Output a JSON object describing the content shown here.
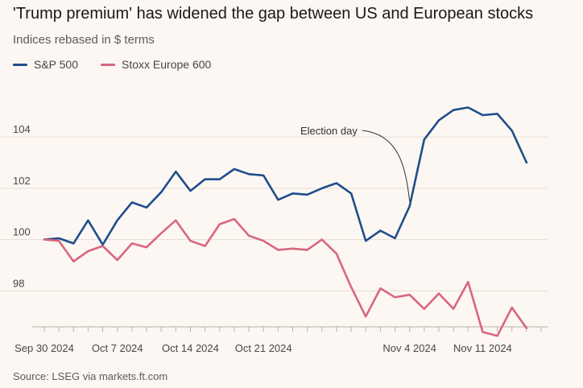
{
  "header": {
    "title": "'Trump premium' has widened the gap between US and European stocks",
    "subtitle": "Indices rebased in $ terms"
  },
  "footer": {
    "source": "Source: LSEG via markets.ft.com"
  },
  "chart_data": {
    "type": "line",
    "title": "'Trump premium' has widened the gap between US and European stocks",
    "subtitle": "Indices rebased in $ terms",
    "xlabel": "",
    "ylabel": "",
    "x": [
      "2024-09-30",
      "2024-10-01",
      "2024-10-02",
      "2024-10-03",
      "2024-10-04",
      "2024-10-07",
      "2024-10-08",
      "2024-10-09",
      "2024-10-10",
      "2024-10-11",
      "2024-10-14",
      "2024-10-15",
      "2024-10-16",
      "2024-10-17",
      "2024-10-18",
      "2024-10-21",
      "2024-10-22",
      "2024-10-23",
      "2024-10-24",
      "2024-10-25",
      "2024-10-28",
      "2024-10-29",
      "2024-10-30",
      "2024-10-31",
      "2024-11-01",
      "2024-11-04",
      "2024-11-05",
      "2024-11-06",
      "2024-11-07",
      "2024-11-08",
      "2024-11-11",
      "2024-11-12",
      "2024-11-13",
      "2024-11-14",
      "2024-11-15"
    ],
    "x_ticks": [
      {
        "date": "2024-09-30",
        "label": "Sep 30 2024"
      },
      {
        "date": "2024-10-07",
        "label": "Oct 7 2024"
      },
      {
        "date": "2024-10-14",
        "label": "Oct 14 2024"
      },
      {
        "date": "2024-10-21",
        "label": "Oct 21 2024"
      },
      {
        "date": "2024-11-04",
        "label": "Nov 4 2024"
      },
      {
        "date": "2024-11-11",
        "label": "Nov 11 2024"
      }
    ],
    "ylim": [
      96.6,
      106.2
    ],
    "y_ticks": [
      98,
      100,
      102,
      104
    ],
    "grid": "horizontal",
    "legend": "top-left",
    "series": [
      {
        "name": "S&P 500",
        "color": "#1f4e8c",
        "values": [
          100.0,
          100.05,
          99.85,
          100.75,
          99.8,
          100.75,
          101.45,
          101.25,
          101.85,
          102.65,
          101.9,
          102.35,
          102.35,
          102.75,
          102.55,
          102.5,
          101.55,
          101.8,
          101.75,
          102.0,
          102.2,
          101.8,
          99.95,
          100.35,
          100.05,
          101.3,
          103.9,
          104.65,
          105.05,
          105.15,
          104.85,
          104.9,
          104.25,
          103.0,
          null
        ]
      },
      {
        "name": "Stoxx Europe 600",
        "color": "#d9667f",
        "values": [
          100.0,
          99.95,
          99.15,
          99.55,
          99.75,
          99.2,
          99.85,
          99.7,
          100.25,
          100.75,
          99.95,
          99.75,
          100.6,
          100.8,
          100.15,
          99.95,
          99.6,
          99.65,
          99.6,
          100.0,
          99.45,
          98.15,
          97.0,
          98.1,
          97.75,
          97.85,
          97.3,
          97.9,
          97.3,
          98.35,
          96.4,
          96.25,
          97.35,
          96.55,
          null
        ]
      }
    ],
    "annotations": [
      {
        "text": "Election day",
        "date": "2024-11-04"
      }
    ]
  }
}
